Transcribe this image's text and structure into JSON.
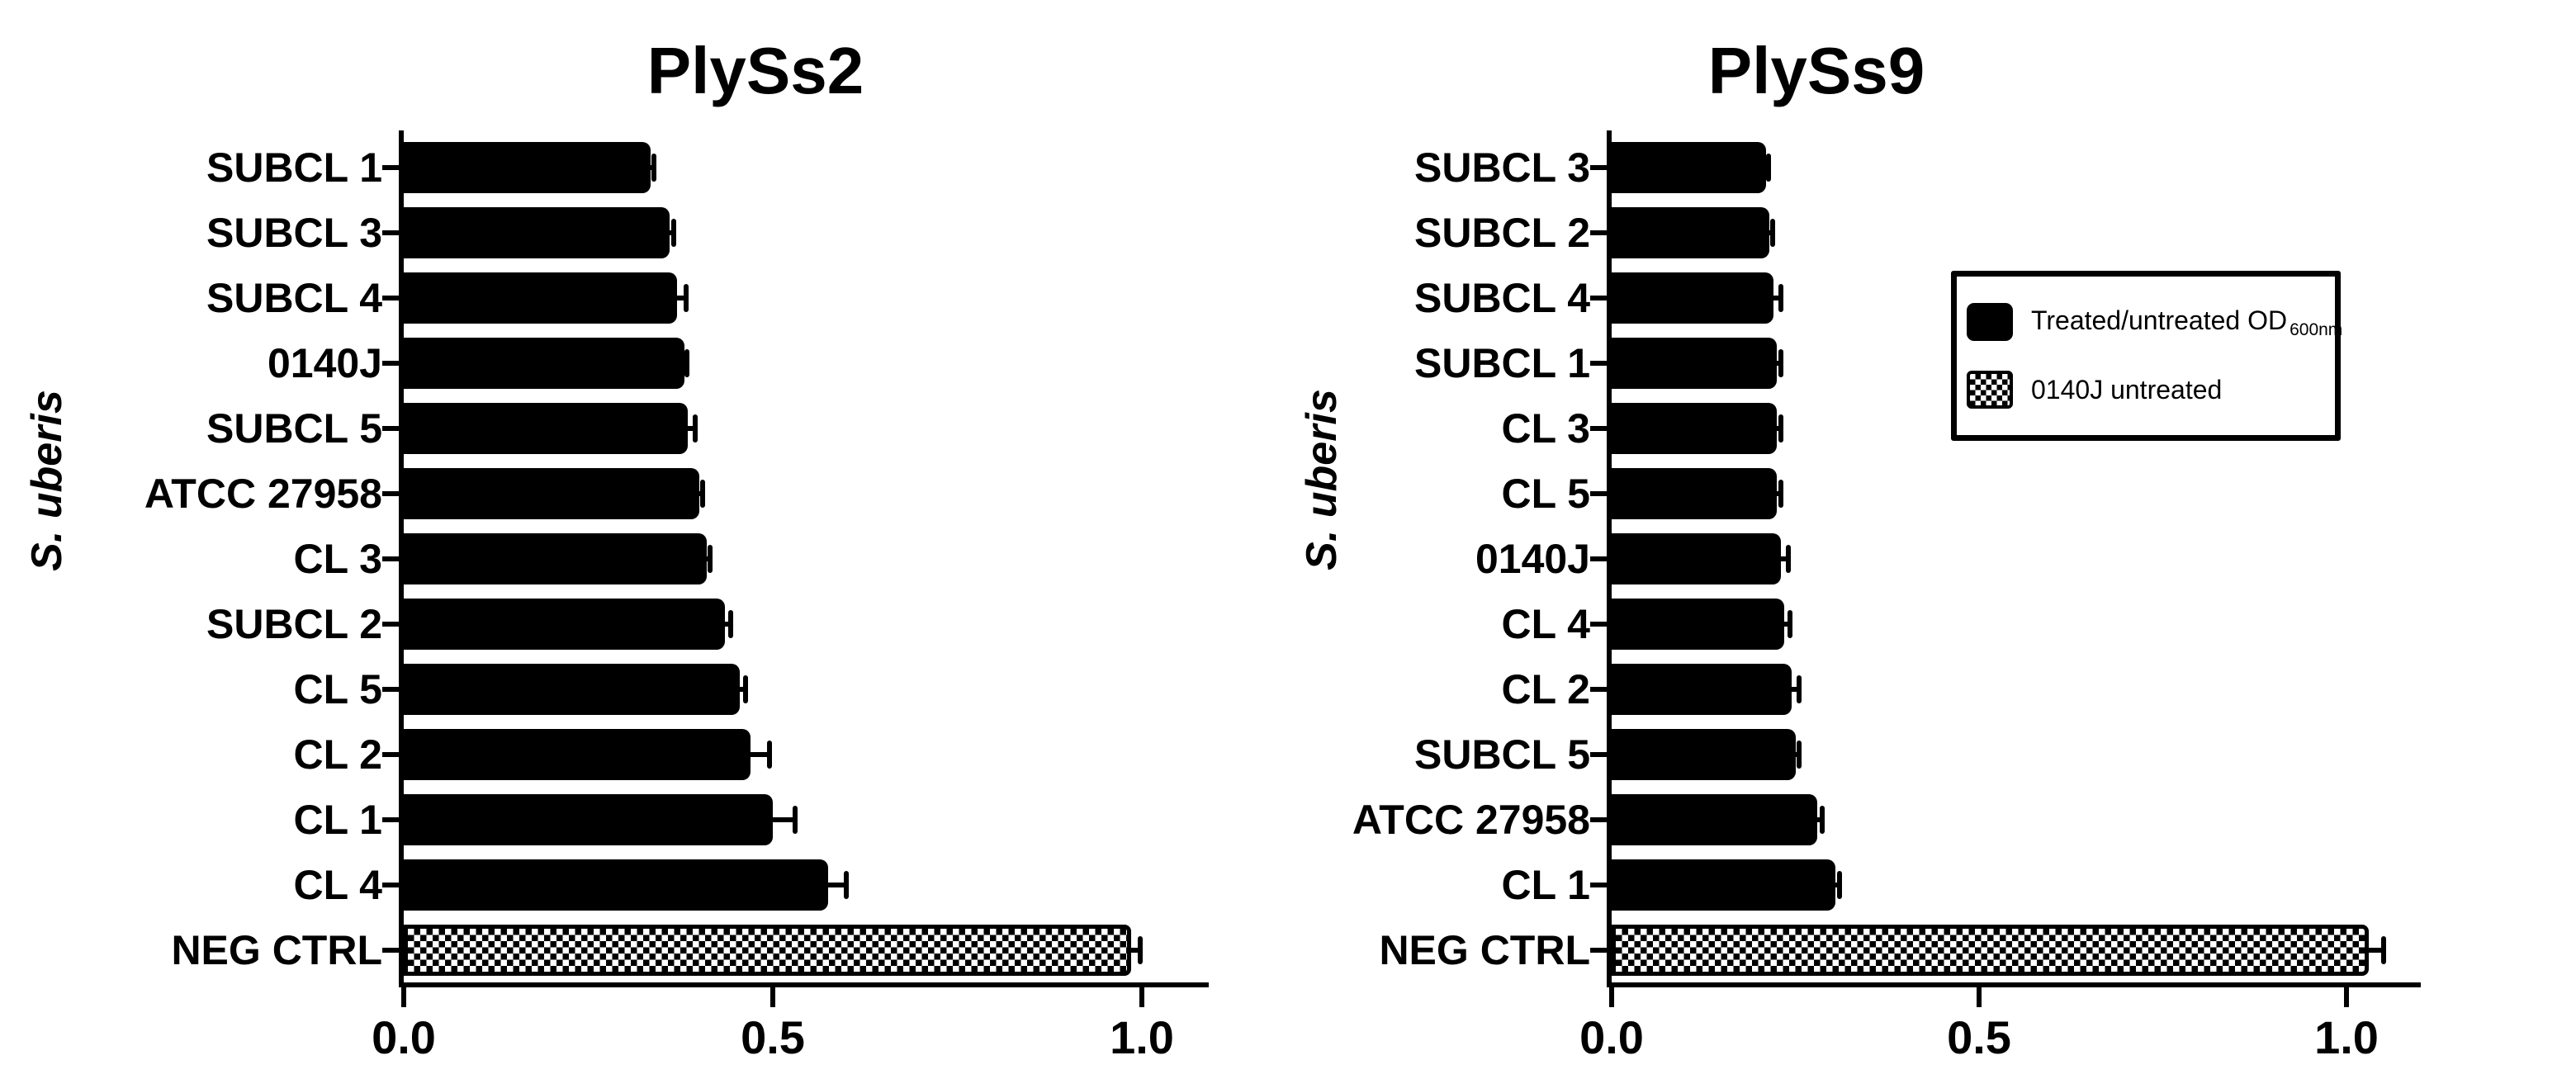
{
  "figure": {
    "background": "#ffffff",
    "ink": "#000000"
  },
  "legend": {
    "items": [
      {
        "swatch": "solid-black",
        "label": "Treated/untreated OD",
        "subscript": "600nm"
      },
      {
        "swatch": "checkered",
        "label": "0140J untreated"
      }
    ]
  },
  "chart_data": [
    {
      "type": "bar",
      "orientation": "horizontal",
      "title": "PlySs2",
      "ylabel": "S. uberis",
      "xlabel": "",
      "xlim": [
        0,
        1.1
      ],
      "xticks": [
        0,
        0.5,
        1.0
      ],
      "xtick_labels": [
        "0.0",
        "0.5",
        "1.0"
      ],
      "grid": false,
      "legend_position": "none",
      "categories": [
        "SUBCL 1",
        "SUBCL 3",
        "SUBCL 4",
        "0140J",
        "SUBCL 5",
        "ATCC 27958",
        "CL 3",
        "SUBCL 2",
        "CL 5",
        "CL 2",
        "CL 1",
        "CL 4",
        "NEG CTRL"
      ],
      "values": [
        0.335,
        0.36,
        0.37,
        0.38,
        0.385,
        0.4,
        0.41,
        0.435,
        0.455,
        0.47,
        0.5,
        0.575,
        0.985
      ],
      "errors": [
        0.004,
        0.006,
        0.012,
        0.004,
        0.01,
        0.005,
        0.005,
        0.008,
        0.008,
        0.025,
        0.03,
        0.025,
        0.013
      ],
      "bar_styles": [
        "solid",
        "solid",
        "solid",
        "solid",
        "solid",
        "solid",
        "solid",
        "solid",
        "solid",
        "solid",
        "solid",
        "solid",
        "checkered"
      ]
    },
    {
      "type": "bar",
      "orientation": "horizontal",
      "title": "PlySs9",
      "ylabel": "S. uberis",
      "xlabel": "",
      "xlim": [
        0,
        1.1
      ],
      "xticks": [
        0,
        0.5,
        1.0
      ],
      "xtick_labels": [
        "0.0",
        "0.5",
        "1.0"
      ],
      "grid": false,
      "legend_position": "upper-right",
      "categories": [
        "SUBCL 3",
        "SUBCL 2",
        "SUBCL 4",
        "SUBCL 1",
        "CL 3",
        "CL 5",
        "0140J",
        "CL 4",
        "CL 2",
        "SUBCL 5",
        "ATCC 27958",
        "CL 1",
        "NEG CTRL"
      ],
      "values": [
        0.21,
        0.215,
        0.22,
        0.225,
        0.225,
        0.225,
        0.23,
        0.235,
        0.245,
        0.25,
        0.28,
        0.305,
        1.03
      ],
      "errors": [
        0.004,
        0.004,
        0.01,
        0.005,
        0.005,
        0.005,
        0.01,
        0.008,
        0.01,
        0.005,
        0.006,
        0.005,
        0.02
      ],
      "bar_styles": [
        "solid",
        "solid",
        "solid",
        "solid",
        "solid",
        "solid",
        "solid",
        "solid",
        "solid",
        "solid",
        "solid",
        "solid",
        "checkered"
      ]
    }
  ]
}
